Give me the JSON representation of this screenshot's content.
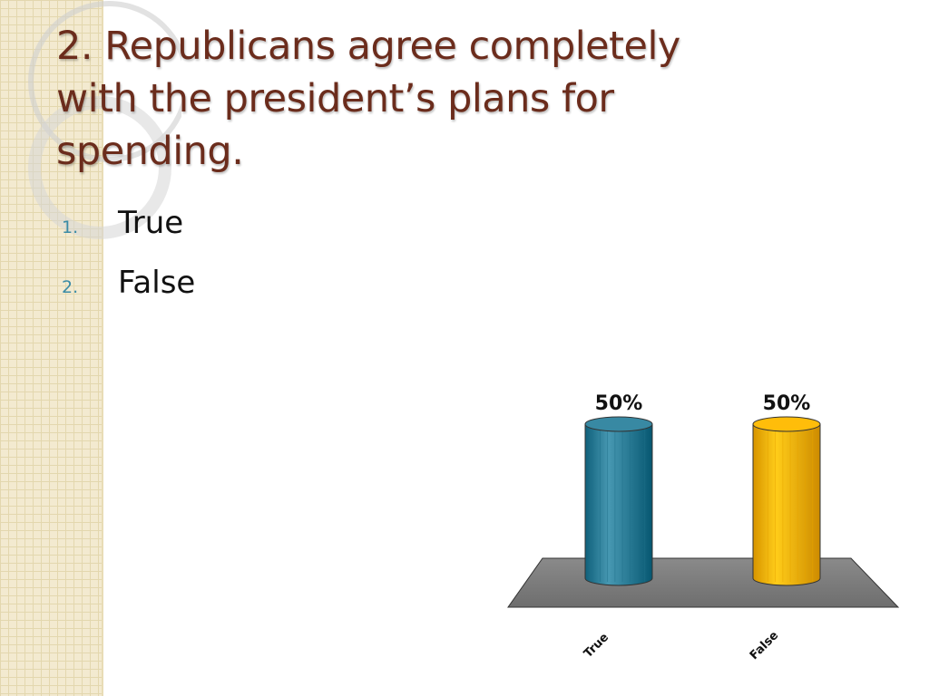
{
  "slide": {
    "title": "2. Republicans agree completely with the president’s plans for spending.",
    "options": [
      {
        "num": "1.",
        "label": "True"
      },
      {
        "num": "2.",
        "label": "False"
      }
    ]
  },
  "chart_data": {
    "type": "bar",
    "categories": [
      "True",
      "False"
    ],
    "values": [
      50,
      50
    ],
    "data_labels": [
      "50%",
      "50%"
    ],
    "colors": [
      "#2e7f99",
      "#f5b300"
    ],
    "ylim": [
      0,
      100
    ],
    "grid": false,
    "title": "",
    "xlabel": "",
    "ylabel": ""
  }
}
